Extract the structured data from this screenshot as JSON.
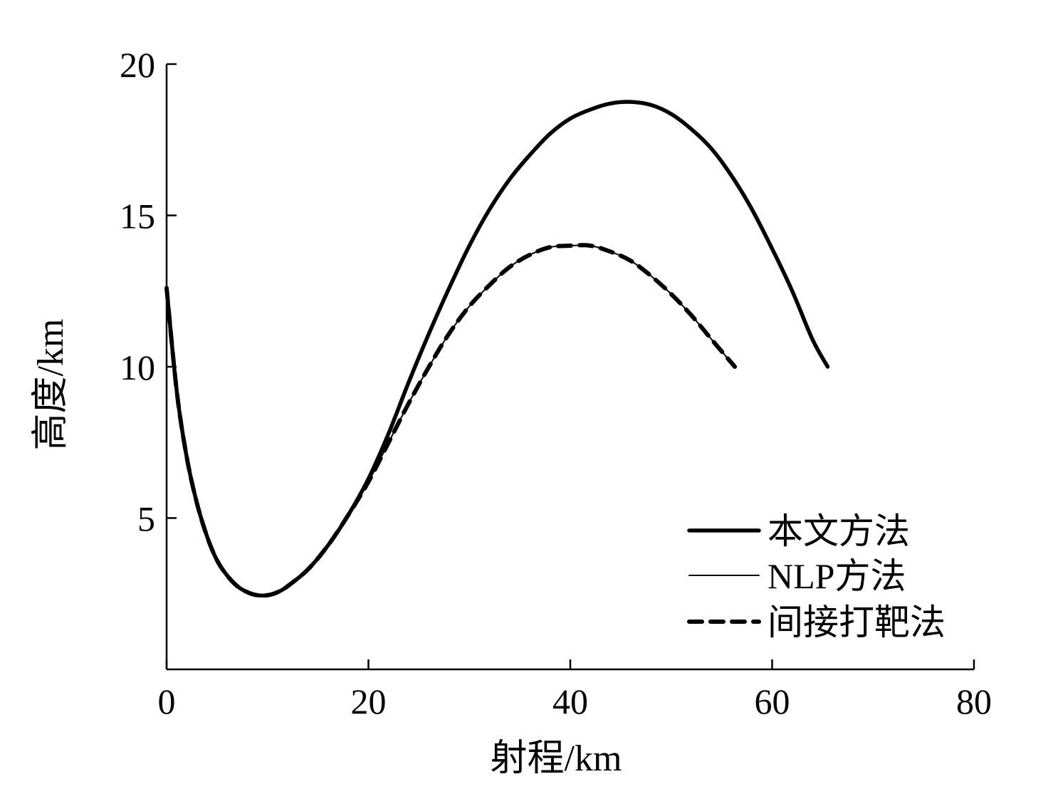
{
  "chart_data": {
    "type": "line",
    "xlabel": "射程/km",
    "ylabel": "高度/km",
    "xlim": [
      0,
      80
    ],
    "ylim": [
      0,
      20
    ],
    "xticks": [
      0,
      20,
      40,
      60,
      80
    ],
    "yticks": [
      5,
      10,
      15,
      20
    ],
    "grid": false,
    "legend_position": "bottom-right",
    "series": [
      {
        "name": "本文方法",
        "style": "solid-thick",
        "color": "#000000",
        "x": [
          0,
          1,
          2,
          3,
          4,
          5,
          6,
          7,
          8,
          9,
          10,
          11,
          12,
          14,
          16,
          18,
          20,
          22,
          24,
          26,
          28,
          30,
          32,
          34,
          36,
          38,
          40,
          42,
          44,
          46,
          48,
          50,
          52,
          54,
          56,
          58,
          60,
          62,
          64,
          65.5
        ],
        "y": [
          12.6,
          9.2,
          7.0,
          5.5,
          4.4,
          3.6,
          3.1,
          2.75,
          2.55,
          2.45,
          2.45,
          2.55,
          2.75,
          3.3,
          4.1,
          5.1,
          6.3,
          7.8,
          9.5,
          11.1,
          12.6,
          14.0,
          15.2,
          16.2,
          17.0,
          17.7,
          18.2,
          18.5,
          18.7,
          18.75,
          18.65,
          18.35,
          17.85,
          17.2,
          16.3,
          15.2,
          13.9,
          12.5,
          10.9,
          10.0
        ]
      },
      {
        "name": "NLP方法",
        "style": "solid-thin",
        "color": "#000000",
        "x": [
          0,
          1,
          2,
          3,
          4,
          5,
          6,
          7,
          8,
          9,
          10,
          11,
          12,
          14,
          16,
          18,
          20,
          22,
          24,
          26,
          28,
          30,
          32,
          34,
          36,
          38,
          40,
          42,
          44,
          46,
          48,
          50,
          52,
          54,
          56.3
        ],
        "y": [
          12.6,
          9.2,
          7.0,
          5.5,
          4.4,
          3.6,
          3.1,
          2.75,
          2.55,
          2.45,
          2.45,
          2.55,
          2.75,
          3.3,
          4.1,
          5.1,
          6.2,
          7.5,
          8.8,
          10.0,
          11.1,
          12.0,
          12.7,
          13.3,
          13.7,
          13.95,
          14.0,
          14.0,
          13.8,
          13.5,
          13.0,
          12.4,
          11.7,
          10.9,
          10.0
        ]
      },
      {
        "name": "间接打靶法",
        "style": "dashed",
        "color": "#000000",
        "x": [
          0,
          1,
          2,
          3,
          4,
          5,
          6,
          7,
          8,
          9,
          10,
          11,
          12,
          14,
          16,
          18,
          20,
          22,
          24,
          26,
          28,
          30,
          32,
          34,
          36,
          38,
          40,
          42,
          44,
          46,
          48,
          50,
          52,
          54,
          56.3
        ],
        "y": [
          12.6,
          9.2,
          7.0,
          5.5,
          4.4,
          3.6,
          3.1,
          2.75,
          2.55,
          2.45,
          2.45,
          2.55,
          2.75,
          3.3,
          4.1,
          5.1,
          6.2,
          7.5,
          8.8,
          10.0,
          11.1,
          12.0,
          12.7,
          13.3,
          13.7,
          13.95,
          14.0,
          14.0,
          13.8,
          13.5,
          13.0,
          12.4,
          11.7,
          10.9,
          10.0
        ]
      }
    ]
  }
}
